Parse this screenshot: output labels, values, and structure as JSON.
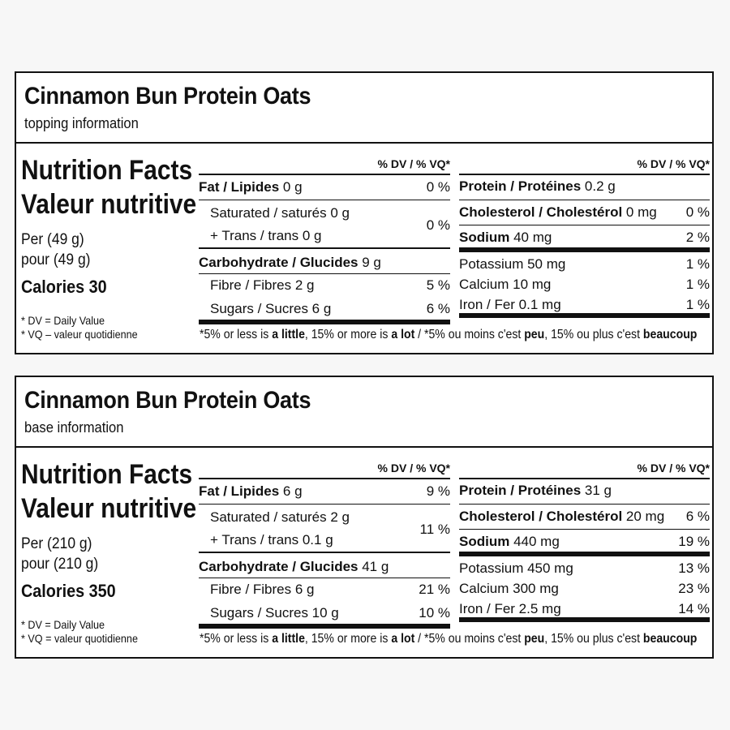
{
  "labels": [
    {
      "product": "Cinnamon Bun Protein Oats",
      "subtitle": "topping information",
      "title_en": "Nutrition Facts",
      "title_fr": "Valeur nutritive",
      "per_en": "Per (49 g)",
      "per_fr": "pour (49 g)",
      "calories": "Calories 30",
      "dv_note": "* DV = Daily Value",
      "vq_note": "* VQ – valeur quotidienne",
      "dv_header": "% DV / % VQ*",
      "fat": "Fat / Lipides",
      "fat_amt": " 0 g",
      "fat_pct": "0 %",
      "sat": "Saturated / saturés 0 g",
      "trans": "+ Trans / trans 0 g",
      "sat_trans_pct": "0 %",
      "carb": "Carbohydrate / Glucides",
      "carb_amt": " 9 g",
      "fibre": "Fibre / Fibres 2 g",
      "fibre_pct": "5 %",
      "sugars": "Sugars / Sucres 6 g",
      "sugars_pct": "6 %",
      "protein": "Protein / Protéines",
      "protein_amt": " 0.2 g",
      "chol": "Cholesterol / Cholestérol",
      "chol_amt": " 0 mg",
      "chol_pct": "0 %",
      "sodium": "Sodium",
      "sodium_amt": " 40 mg",
      "sodium_pct": "2 %",
      "potassium": "Potassium 50 mg",
      "potassium_pct": "1 %",
      "calcium": "Calcium 10 mg",
      "calcium_pct": "1 %",
      "iron": "Iron / Fer 0.1 mg",
      "iron_pct": "1 %"
    },
    {
      "product": "Cinnamon Bun Protein Oats",
      "subtitle": "base information",
      "title_en": "Nutrition Facts",
      "title_fr": "Valeur nutritive",
      "per_en": "Per (210 g)",
      "per_fr": "pour (210 g)",
      "calories": "Calories 350",
      "dv_note": "* DV = Daily Value",
      "vq_note": "* VQ = valeur quotidienne",
      "dv_header": "% DV / % VQ*",
      "fat": "Fat / Lipides",
      "fat_amt": " 6 g",
      "fat_pct": "9 %",
      "sat": "Saturated / saturés 2 g",
      "trans": "+ Trans / trans 0.1 g",
      "sat_trans_pct": "11 %",
      "carb": "Carbohydrate / Glucides",
      "carb_amt": " 41 g",
      "fibre": "Fibre / Fibres 6 g",
      "fibre_pct": "21 %",
      "sugars": "Sugars / Sucres 10 g",
      "sugars_pct": "10 %",
      "protein": "Protein / Protéines",
      "protein_amt": " 31 g",
      "chol": "Cholesterol / Cholestérol",
      "chol_amt": " 20 mg",
      "chol_pct": "6 %",
      "sodium": "Sodium",
      "sodium_amt": " 440 mg",
      "sodium_pct": "19 %",
      "potassium": "Potassium 450 mg",
      "potassium_pct": "13 %",
      "calcium": "Calcium 300 mg",
      "calcium_pct": "23 %",
      "iron": "Iron / Fer 2.5 mg",
      "iron_pct": "14 %"
    }
  ],
  "footer": {
    "p1": "*5% or less is ",
    "b1": "a little",
    "p2": ", 15% or more is ",
    "b2": "a lot",
    "p3": " / *5% ou moins c'est ",
    "b3": "peu",
    "p4": ", 15% ou plus c'est ",
    "b4": "beaucoup"
  }
}
